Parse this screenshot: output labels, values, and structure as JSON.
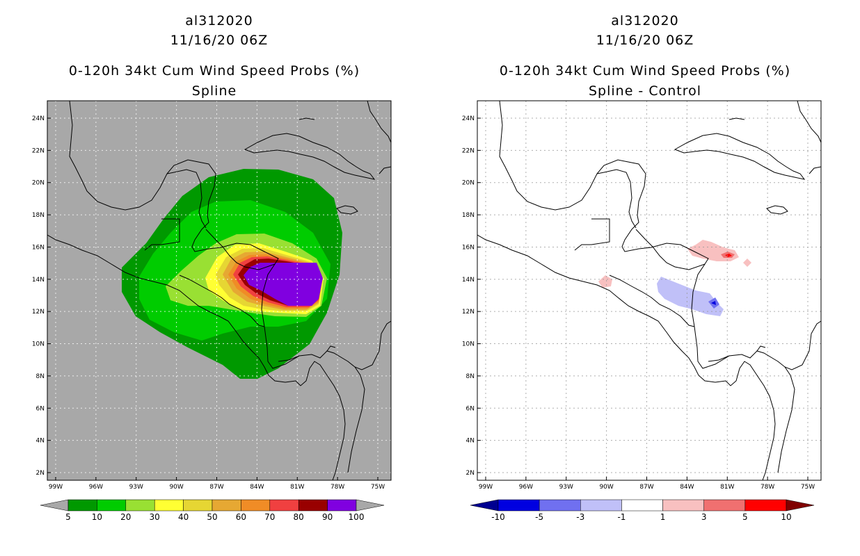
{
  "left_panel": {
    "title_line1": "al312020",
    "title_line2": "11/16/20 06Z",
    "title_line3": "0-120h 34kt Cum Wind Speed Probs (%)",
    "title_line4": "Spline",
    "colorbar": {
      "labels": [
        "5",
        "10",
        "20",
        "30",
        "40",
        "50",
        "60",
        "70",
        "80",
        "90",
        "100"
      ],
      "colors": [
        "#009900",
        "#00cc00",
        "#99e033",
        "#ffff33",
        "#e6d633",
        "#e6a833",
        "#f08c26",
        "#f04040",
        "#990000",
        "#8000e0"
      ],
      "under_color": "#a8a8a8",
      "over_color": "#a8a8a8"
    },
    "background_color": "#a8a8a8"
  },
  "right_panel": {
    "title_line1": "al312020",
    "title_line2": "11/16/20 06Z",
    "title_line3": "0-120h 34kt Cum Wind Speed Probs (%)",
    "title_line4": "Spline - Control",
    "colorbar": {
      "labels": [
        "-10",
        "-5",
        "-3",
        "-1",
        "1",
        "3",
        "5",
        "10"
      ],
      "colors": [
        "#0000e0",
        "#7070f0",
        "#c0c0f8",
        "#ffffff",
        "#f8c0c0",
        "#f07070",
        "#ff0000"
      ],
      "under_color": "#000090",
      "over_color": "#800000"
    }
  },
  "axes": {
    "lat_labels": [
      "24N",
      "22N",
      "20N",
      "18N",
      "16N",
      "14N",
      "12N",
      "10N",
      "8N",
      "6N",
      "4N",
      "2N"
    ],
    "lon_labels": [
      "99W",
      "96W",
      "93W",
      "90W",
      "87W",
      "84W",
      "81W",
      "78W",
      "75W"
    ]
  },
  "icons": {
    "coastline": "coastline-outline"
  }
}
